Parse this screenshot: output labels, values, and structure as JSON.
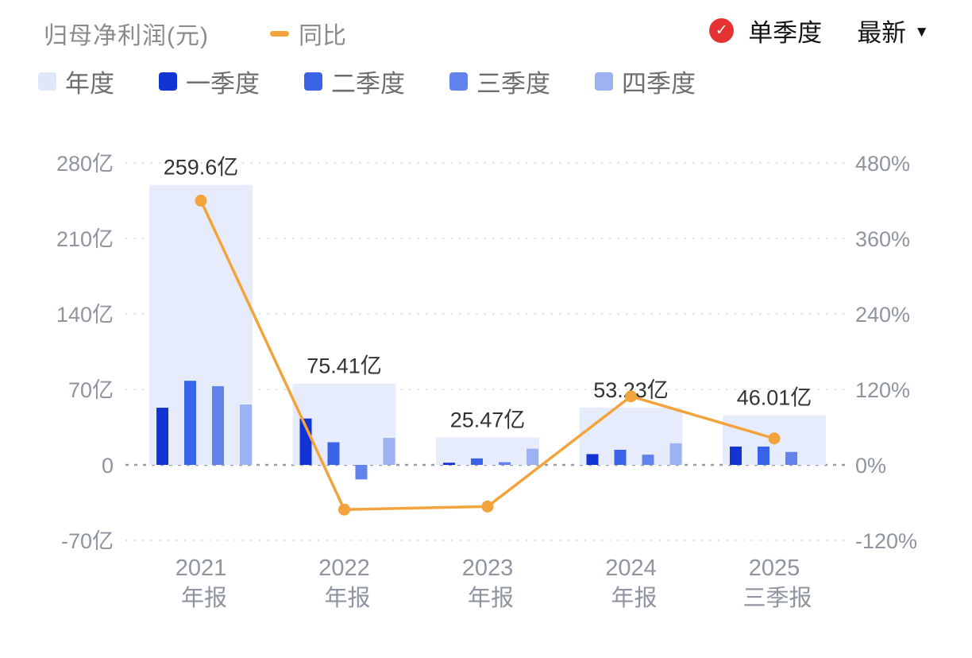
{
  "header": {
    "title": "归母净利润(元)",
    "line_legend": "同比",
    "mode_label": "单季度",
    "latest_label": "最新"
  },
  "legend": [
    {
      "label": "年度",
      "color": "#dfe7fb"
    },
    {
      "label": "一季度",
      "color": "#1334d4"
    },
    {
      "label": "二季度",
      "color": "#3a64e8"
    },
    {
      "label": "三季度",
      "color": "#6283ec"
    },
    {
      "label": "四季度",
      "color": "#9cb2f3"
    }
  ],
  "colors": {
    "annual_bar": "#e6ecfb",
    "q1": "#1334d4",
    "q2": "#3a64e8",
    "q3": "#6283ec",
    "q4": "#9cb2f3",
    "line": "#f2a33c",
    "check_bg": "#e53333"
  },
  "chart_data": {
    "type": "bar+line",
    "title": "归母净利润(元)",
    "categories": [
      [
        "2021",
        "年报"
      ],
      [
        "2022",
        "年报"
      ],
      [
        "2023",
        "年报"
      ],
      [
        "2024",
        "年报"
      ],
      [
        "2025",
        "三季报"
      ]
    ],
    "annual_values": [
      259.6,
      75.41,
      25.47,
      53.23,
      46.01
    ],
    "annual_labels": [
      "259.6亿",
      "75.41亿",
      "25.47亿",
      "53.23亿",
      "46.01亿"
    ],
    "quarterly_series": [
      {
        "name": "一季度",
        "values": [
          53,
          43,
          2,
          10,
          17
        ]
      },
      {
        "name": "二季度",
        "values": [
          78,
          21,
          6,
          14,
          17
        ]
      },
      {
        "name": "三季度",
        "values": [
          73,
          -13.5,
          2.5,
          9.5,
          12
        ]
      },
      {
        "name": "四季度",
        "values": [
          56,
          25,
          15,
          20,
          null
        ]
      }
    ],
    "yoy_series": {
      "name": "同比",
      "values": [
        420,
        -71,
        -66.2,
        109,
        42
      ]
    },
    "left_axis": {
      "ticks": [
        "280亿",
        "210亿",
        "140亿",
        "70亿",
        "0",
        "-70亿"
      ],
      "values": [
        280,
        210,
        140,
        70,
        0,
        -70
      ],
      "unit": "亿"
    },
    "right_axis": {
      "ticks": [
        "480%",
        "360%",
        "240%",
        "120%",
        "0%",
        "-120%"
      ],
      "values": [
        480,
        360,
        240,
        120,
        0,
        -120
      ],
      "unit": "%"
    },
    "grid": "dashed-horizontal",
    "legend_position": "top"
  }
}
